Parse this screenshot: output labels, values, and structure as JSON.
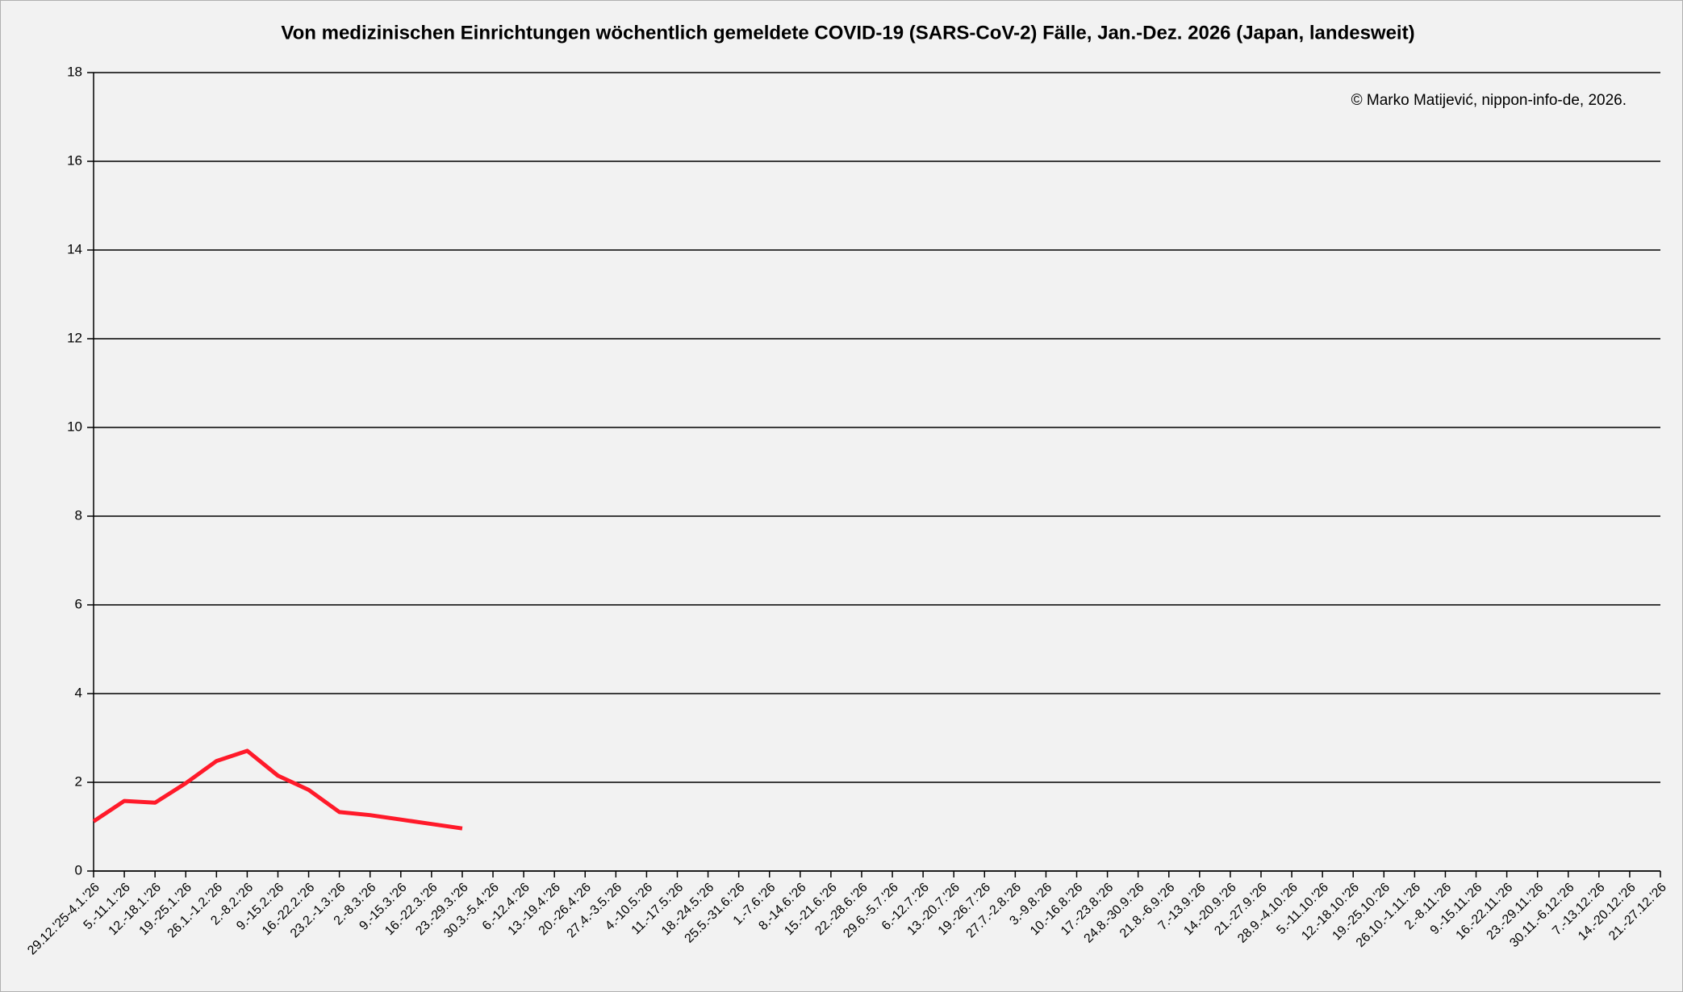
{
  "chart_data": {
    "type": "line",
    "title": "Von medizinischen Einrichtungen wöchentlich gemeldete COVID-19 (SARS-CoV-2) Fälle, Jan.-Dez. 2026 (Japan, landesweit)",
    "annotation": "© Marko Matijević, nippon-info-de, 2026.",
    "categories": [
      "29.12.'25-4.1.'26",
      "5.-11.1.'26",
      "12.-18.1.'26",
      "19.-25.1.'26",
      "26.1.-1.2.'26",
      "2.-8.2.'26",
      "9.-15.2.'26",
      "16.-22.2.'26",
      "23.2.-1.3.'26",
      "2.-8.3.'26",
      "9.-15.3.'26",
      "16.-22.3.'26",
      "23.-29.3.'26",
      "30.3.-5.4.'26",
      "6.-12.4.'26",
      "13.-19.4.'26",
      "20.-26.4.'26",
      "27.4.-3.5.'26",
      "4.-10.5.'26",
      "11.-17.5.'26",
      "18.-24.5.'26",
      "25.5.-31.6.'26",
      "1.-7.6.'26",
      "8.-14.6.'26",
      "15.-21.6.'26",
      "22.-28.6.'26",
      "29.6.-5.7.'26",
      "6.-12.7.'26",
      "13.-20.7.'26",
      "19.-26.7.'26",
      "27.7.-2.8.'26",
      "3.-9.8.'26",
      "10.-16.8.'26",
      "17.-23.8.'26",
      "24.8.-30.9.'26",
      "21.8.-6.9.'26",
      "7.-13.9.'26",
      "14.-20.9.'26",
      "21.-27.9.'26",
      "28.9.-4.10.'26",
      "5.-11.10.'26",
      "12.-18.10.'26",
      "19.-25.10.'26",
      "26.10.-1.11.'26",
      "2.-8.11.'26",
      "9.-15.11.'26",
      "16.-22.11.'26",
      "23.-29.11.'26",
      "30.11.-6.12.'26",
      "7.-13.12.'26",
      "14.-20.12.'26",
      "21.-27.12.'26"
    ],
    "series": [
      {
        "color": "#ff1a2a",
        "values": [
          1.12,
          1.58,
          1.54,
          1.98,
          2.48,
          2.71,
          2.15,
          1.83,
          1.33,
          1.26,
          1.16,
          1.06,
          0.96,
          null,
          null,
          null,
          null,
          null,
          null,
          null,
          null,
          null,
          null,
          null,
          null,
          null,
          null,
          null,
          null,
          null,
          null,
          null,
          null,
          null,
          null,
          null,
          null,
          null,
          null,
          null,
          null,
          null,
          null,
          null,
          null,
          null,
          null,
          null,
          null,
          null,
          null,
          null
        ]
      }
    ],
    "ylim": [
      0,
      18
    ],
    "yticks": [
      0,
      2,
      4,
      6,
      8,
      10,
      12,
      14,
      16,
      18
    ],
    "grid": true
  }
}
